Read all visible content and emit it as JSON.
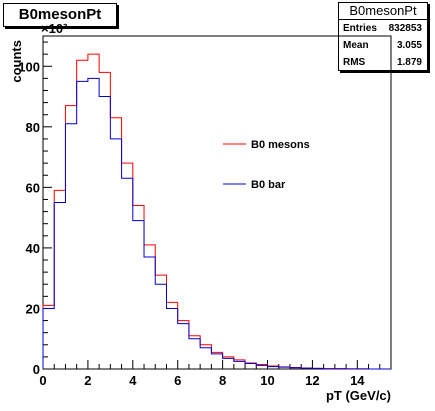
{
  "title": "B0mesonPt",
  "stats": {
    "title": "B0mesonPt",
    "rows": [
      {
        "label": "Entries",
        "value": "832853"
      },
      {
        "label": "Mean",
        "value": "3.055"
      },
      {
        "label": "RMS",
        "value": "1.879"
      }
    ]
  },
  "chart_data": {
    "type": "histogram",
    "xlabel": "pT (GeV/c)",
    "ylabel": "counts",
    "y_multiplier": "×10³",
    "xlim": [
      0,
      15.5
    ],
    "ylim": [
      0,
      110
    ],
    "x_ticks": [
      "0",
      "2",
      "4",
      "6",
      "8",
      "10",
      "12",
      "14"
    ],
    "y_ticks": [
      "0",
      "20",
      "40",
      "60",
      "80",
      "100"
    ],
    "bin_edges": [
      0,
      0.5,
      1,
      1.5,
      2,
      2.5,
      3,
      3.5,
      4,
      4.5,
      5,
      5.5,
      6,
      6.5,
      7,
      7.5,
      8,
      8.5,
      9,
      9.5,
      10,
      10.5,
      11,
      11.5,
      12,
      12.5,
      13,
      13.5,
      14,
      14.5,
      15,
      15.5
    ],
    "series": [
      {
        "name": "B0 mesons",
        "color": "#ff0000",
        "values": [
          21,
          59,
          87,
          102,
          104,
          98,
          83,
          68,
          54,
          41,
          31,
          22,
          16,
          11,
          8,
          5.5,
          4,
          3,
          2,
          1.5,
          1,
          0.7,
          0.5,
          0.3,
          0.2,
          0.1,
          0.1,
          0.05,
          0.05,
          0,
          0
        ]
      },
      {
        "name": "B0 bar",
        "color": "#0000cc",
        "values": [
          20,
          55,
          81,
          95,
          96,
          90,
          76,
          63,
          49,
          37,
          28,
          20,
          15,
          10,
          7,
          5,
          3.5,
          2.5,
          1.8,
          1.2,
          0.8,
          0.6,
          0.4,
          0.3,
          0.2,
          0.1,
          0.1,
          0.05,
          0.05,
          0,
          0
        ]
      }
    ],
    "legend": [
      {
        "name": "B0 mesons",
        "color": "#ff0000"
      },
      {
        "name": "B0 bar",
        "color": "#0000cc"
      }
    ]
  }
}
